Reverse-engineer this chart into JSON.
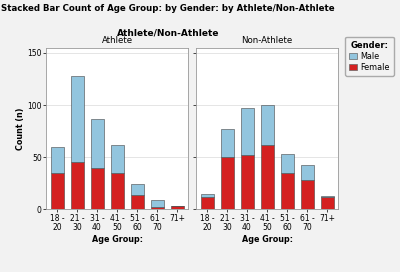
{
  "title": "Stacked Bar Count of Age Group: by Gender: by Athlete/Non-Athlete",
  "facet_title": "Athlete/Non-Athlete",
  "panel_titles": [
    "Athlete",
    "Non-Athlete"
  ],
  "xlabel": "Age Group:",
  "ylabel": "Count (n)",
  "legend_title": "Gender:",
  "legend_labels": [
    "Male",
    "Female"
  ],
  "male_color": "#92C5DE",
  "female_color": "#D42020",
  "age_groups": [
    "18 -\n20",
    "21 -\n30",
    "31 -\n40",
    "41 -\n50",
    "51 -\n60",
    "61 -\n70",
    "71+"
  ],
  "athlete_female": [
    35,
    45,
    40,
    35,
    14,
    2,
    3
  ],
  "athlete_male": [
    25,
    83,
    47,
    27,
    10,
    7,
    0
  ],
  "nonathlete_female": [
    12,
    50,
    52,
    62,
    35,
    28,
    12
  ],
  "nonathlete_male": [
    3,
    27,
    45,
    38,
    18,
    15,
    1
  ],
  "ylim": [
    0,
    155
  ],
  "yticks": [
    0,
    50,
    100,
    150
  ],
  "bg_color": "#F2F2F2",
  "panel_bg": "#FFFFFF",
  "grid_color": "#E0E0E0",
  "bar_width": 0.65,
  "edge_color": "#444444",
  "edge_width": 0.4,
  "title_fontsize": 6.2,
  "facet_fontsize": 6.5,
  "panel_fontsize": 6.2,
  "axis_fontsize": 5.8,
  "tick_fontsize": 5.5,
  "legend_fontsize": 5.8,
  "legend_title_fontsize": 6.0
}
